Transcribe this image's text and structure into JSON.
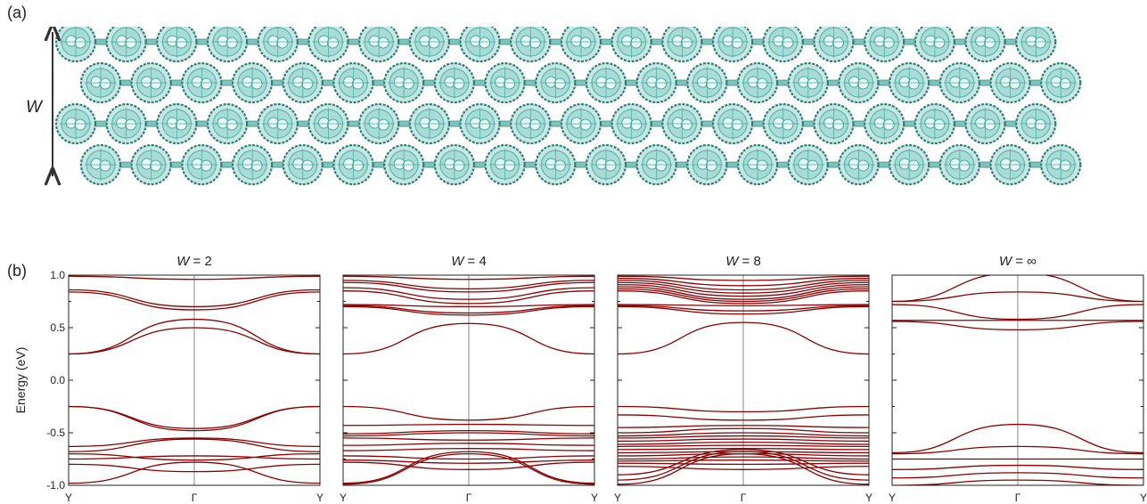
{
  "figure": {
    "panel_a_label": "(a)",
    "panel_b_label": "(b)",
    "width_arrow_label": "W",
    "molecule_color": "#5fb6ad",
    "band_color": "#8b0000"
  },
  "ribbon": {
    "rows": [
      {
        "count": 20
      },
      {
        "count": 20
      },
      {
        "count": 20
      },
      {
        "count": 20
      }
    ]
  },
  "chart_data": [
    {
      "type": "line",
      "title": "W = 2",
      "title_var": "W",
      "title_rest": " = 2",
      "ylabel": "Energy (eV)",
      "ylim": [
        -1.0,
        1.0
      ],
      "yticks": [
        "1.0",
        "0.5",
        "0.0",
        "-0.5",
        "-1.0"
      ],
      "xticks": [
        "Y",
        "Γ",
        "Y"
      ],
      "series": [
        {
          "x": [
            0,
            0.5,
            1
          ],
          "y": [
            0.99,
            0.96,
            0.99
          ]
        },
        {
          "x": [
            0,
            0.5,
            1
          ],
          "y": [
            0.86,
            0.7,
            0.86
          ]
        },
        {
          "x": [
            0,
            0.5,
            1
          ],
          "y": [
            0.84,
            0.67,
            0.84
          ]
        },
        {
          "x": [
            0,
            0.5,
            1
          ],
          "y": [
            0.25,
            0.58,
            0.25
          ]
        },
        {
          "x": [
            0,
            0.5,
            1
          ],
          "y": [
            0.25,
            0.5,
            0.25
          ]
        },
        {
          "x": [
            0,
            0.5,
            1
          ],
          "y": [
            -0.25,
            -0.46,
            -0.25
          ]
        },
        {
          "x": [
            0,
            0.5,
            1
          ],
          "y": [
            -0.25,
            -0.48,
            -0.25
          ]
        },
        {
          "x": [
            0,
            0.5,
            1
          ],
          "y": [
            -0.63,
            -0.55,
            -0.63
          ]
        },
        {
          "x": [
            0,
            0.5,
            1
          ],
          "y": [
            -0.68,
            -0.56,
            -0.68
          ]
        },
        {
          "x": [
            0,
            0.5,
            1
          ],
          "y": [
            -0.7,
            -0.76,
            -0.7
          ]
        },
        {
          "x": [
            0,
            0.5,
            1
          ],
          "y": [
            -0.75,
            -0.72,
            -0.75
          ]
        },
        {
          "x": [
            0,
            0.5,
            1
          ],
          "y": [
            -0.8,
            -0.87,
            -0.8
          ]
        },
        {
          "x": [
            0,
            0.5,
            1
          ],
          "y": [
            -0.98,
            -0.78,
            -0.98
          ]
        }
      ]
    },
    {
      "type": "line",
      "title": "W = 4",
      "title_var": "W",
      "title_rest": " = 4",
      "ylim": [
        -1.0,
        1.0
      ],
      "xticks": [
        "Y",
        "Γ",
        "Y"
      ],
      "series": [
        {
          "x": [
            0,
            0.5,
            1
          ],
          "y": [
            0.99,
            0.96,
            0.99
          ]
        },
        {
          "x": [
            0,
            0.5,
            1
          ],
          "y": [
            0.95,
            0.87,
            0.95
          ]
        },
        {
          "x": [
            0,
            0.5,
            1
          ],
          "y": [
            0.93,
            0.84,
            0.93
          ]
        },
        {
          "x": [
            0,
            0.5,
            1
          ],
          "y": [
            0.88,
            0.77,
            0.88
          ]
        },
        {
          "x": [
            0,
            0.5,
            1
          ],
          "y": [
            0.85,
            0.73,
            0.85
          ]
        },
        {
          "x": [
            0,
            0.5,
            1
          ],
          "y": [
            0.72,
            0.7,
            0.72
          ]
        },
        {
          "x": [
            0,
            0.5,
            1
          ],
          "y": [
            0.71,
            0.64,
            0.71
          ]
        },
        {
          "x": [
            0,
            0.5,
            1
          ],
          "y": [
            0.7,
            0.62,
            0.7
          ]
        },
        {
          "x": [
            0,
            0.5,
            1
          ],
          "y": [
            0.25,
            0.54,
            0.25
          ]
        },
        {
          "x": [
            0,
            0.5,
            1
          ],
          "y": [
            -0.25,
            -0.38,
            -0.25
          ]
        },
        {
          "x": [
            0,
            0.5,
            1
          ],
          "y": [
            -0.43,
            -0.42,
            -0.43
          ]
        },
        {
          "x": [
            0,
            0.5,
            1
          ],
          "y": [
            -0.51,
            -0.48,
            -0.51
          ]
        },
        {
          "x": [
            0,
            0.5,
            1
          ],
          "y": [
            -0.53,
            -0.5,
            -0.53
          ]
        },
        {
          "x": [
            0,
            0.5,
            1
          ],
          "y": [
            -0.55,
            -0.57,
            -0.55
          ]
        },
        {
          "x": [
            0,
            0.5,
            1
          ],
          "y": [
            -0.62,
            -0.6,
            -0.62
          ]
        },
        {
          "x": [
            0,
            0.5,
            1
          ],
          "y": [
            -0.67,
            -0.65,
            -0.67
          ]
        },
        {
          "x": [
            0,
            0.5,
            1
          ],
          "y": [
            -0.72,
            -0.75,
            -0.72
          ]
        },
        {
          "x": [
            0,
            0.5,
            1
          ],
          "y": [
            -0.76,
            -0.79,
            -0.76
          ]
        },
        {
          "x": [
            0,
            0.5,
            1
          ],
          "y": [
            -0.78,
            -0.85,
            -0.78
          ]
        },
        {
          "x": [
            0,
            0.5,
            1
          ],
          "y": [
            -0.98,
            -0.68,
            -0.98
          ]
        },
        {
          "x": [
            0,
            0.5,
            1
          ],
          "y": [
            -0.99,
            -0.7,
            -0.99
          ]
        }
      ]
    },
    {
      "type": "line",
      "title": "W = 8",
      "title_var": "W",
      "title_rest": " = 8",
      "ylim": [
        -1.0,
        1.0
      ],
      "xticks": [
        "Y",
        "Γ",
        "Y"
      ],
      "series": [
        {
          "x": [
            0,
            0.5,
            1
          ],
          "y": [
            0.99,
            0.95,
            0.99
          ]
        },
        {
          "x": [
            0,
            0.5,
            1
          ],
          "y": [
            0.97,
            0.9,
            0.97
          ]
        },
        {
          "x": [
            0,
            0.5,
            1
          ],
          "y": [
            0.95,
            0.86,
            0.95
          ]
        },
        {
          "x": [
            0,
            0.5,
            1
          ],
          "y": [
            0.93,
            0.83,
            0.93
          ]
        },
        {
          "x": [
            0,
            0.5,
            1
          ],
          "y": [
            0.91,
            0.8,
            0.91
          ]
        },
        {
          "x": [
            0,
            0.5,
            1
          ],
          "y": [
            0.89,
            0.77,
            0.89
          ]
        },
        {
          "x": [
            0,
            0.5,
            1
          ],
          "y": [
            0.87,
            0.75,
            0.87
          ]
        },
        {
          "x": [
            0,
            0.5,
            1
          ],
          "y": [
            0.85,
            0.73,
            0.85
          ]
        },
        {
          "x": [
            0,
            0.5,
            1
          ],
          "y": [
            0.72,
            0.71,
            0.72
          ]
        },
        {
          "x": [
            0,
            0.5,
            1
          ],
          "y": [
            0.71,
            0.66,
            0.71
          ]
        },
        {
          "x": [
            0,
            0.5,
            1
          ],
          "y": [
            0.7,
            0.63,
            0.7
          ]
        },
        {
          "x": [
            0,
            0.5,
            1
          ],
          "y": [
            0.25,
            0.55,
            0.25
          ]
        },
        {
          "x": [
            0,
            0.5,
            1
          ],
          "y": [
            -0.25,
            -0.3,
            -0.25
          ]
        },
        {
          "x": [
            0,
            0.5,
            1
          ],
          "y": [
            -0.33,
            -0.38,
            -0.33
          ]
        },
        {
          "x": [
            0,
            0.5,
            1
          ],
          "y": [
            -0.45,
            -0.43,
            -0.45
          ]
        },
        {
          "x": [
            0,
            0.5,
            1
          ],
          "y": [
            -0.5,
            -0.46,
            -0.5
          ]
        },
        {
          "x": [
            0,
            0.5,
            1
          ],
          "y": [
            -0.53,
            -0.5,
            -0.53
          ]
        },
        {
          "x": [
            0,
            0.5,
            1
          ],
          "y": [
            -0.55,
            -0.53,
            -0.55
          ]
        },
        {
          "x": [
            0,
            0.5,
            1
          ],
          "y": [
            -0.58,
            -0.56,
            -0.58
          ]
        },
        {
          "x": [
            0,
            0.5,
            1
          ],
          "y": [
            -0.61,
            -0.59,
            -0.61
          ]
        },
        {
          "x": [
            0,
            0.5,
            1
          ],
          "y": [
            -0.63,
            -0.62,
            -0.63
          ]
        },
        {
          "x": [
            0,
            0.5,
            1
          ],
          "y": [
            -0.66,
            -0.65,
            -0.66
          ]
        },
        {
          "x": [
            0,
            0.5,
            1
          ],
          "y": [
            -0.69,
            -0.68,
            -0.69
          ]
        },
        {
          "x": [
            0,
            0.5,
            1
          ],
          "y": [
            -0.72,
            -0.7,
            -0.72
          ]
        },
        {
          "x": [
            0,
            0.5,
            1
          ],
          "y": [
            -0.75,
            -0.73,
            -0.75
          ]
        },
        {
          "x": [
            0,
            0.5,
            1
          ],
          "y": [
            -0.77,
            -0.76,
            -0.77
          ]
        },
        {
          "x": [
            0,
            0.5,
            1
          ],
          "y": [
            -0.79,
            -0.8,
            -0.79
          ]
        },
        {
          "x": [
            0,
            0.5,
            1
          ],
          "y": [
            -0.82,
            -0.85,
            -0.82
          ]
        },
        {
          "x": [
            0,
            0.5,
            1
          ],
          "y": [
            -0.9,
            -0.66,
            -0.9
          ]
        },
        {
          "x": [
            0,
            0.5,
            1
          ],
          "y": [
            -0.95,
            -0.68,
            -0.95
          ]
        },
        {
          "x": [
            0,
            0.5,
            1
          ],
          "y": [
            -0.99,
            -0.7,
            -0.99
          ]
        }
      ]
    },
    {
      "type": "line",
      "title": "W = ∞",
      "title_var": "W",
      "title_rest": " = ∞",
      "ylim": [
        -1.0,
        1.0
      ],
      "xticks": [
        "Y",
        "Γ",
        "Y"
      ],
      "series": [
        {
          "x": [
            0,
            0.5,
            1
          ],
          "y": [
            0.75,
            1.02,
            0.75
          ]
        },
        {
          "x": [
            0,
            0.5,
            1
          ],
          "y": [
            0.75,
            0.84,
            0.75
          ]
        },
        {
          "x": [
            0,
            0.5,
            1
          ],
          "y": [
            0.72,
            0.58,
            0.72
          ]
        },
        {
          "x": [
            0,
            0.5,
            1
          ],
          "y": [
            0.57,
            0.57,
            0.57
          ]
        },
        {
          "x": [
            0,
            0.5,
            1
          ],
          "y": [
            0.56,
            0.48,
            0.56
          ]
        },
        {
          "x": [
            0,
            0.5,
            1
          ],
          "y": [
            -0.69,
            -0.42,
            -0.69
          ]
        },
        {
          "x": [
            0,
            0.5,
            1
          ],
          "y": [
            -0.7,
            -0.63,
            -0.7
          ]
        },
        {
          "x": [
            0,
            0.5,
            1
          ],
          "y": [
            -0.75,
            -0.75,
            -0.75
          ]
        },
        {
          "x": [
            0,
            0.5,
            1
          ],
          "y": [
            -0.85,
            -0.81,
            -0.85
          ]
        },
        {
          "x": [
            0,
            0.5,
            1
          ],
          "y": [
            -0.93,
            -0.88,
            -0.93
          ]
        },
        {
          "x": [
            0,
            0.5,
            1
          ],
          "y": [
            -1.0,
            -0.95,
            -1.0
          ]
        }
      ]
    }
  ]
}
